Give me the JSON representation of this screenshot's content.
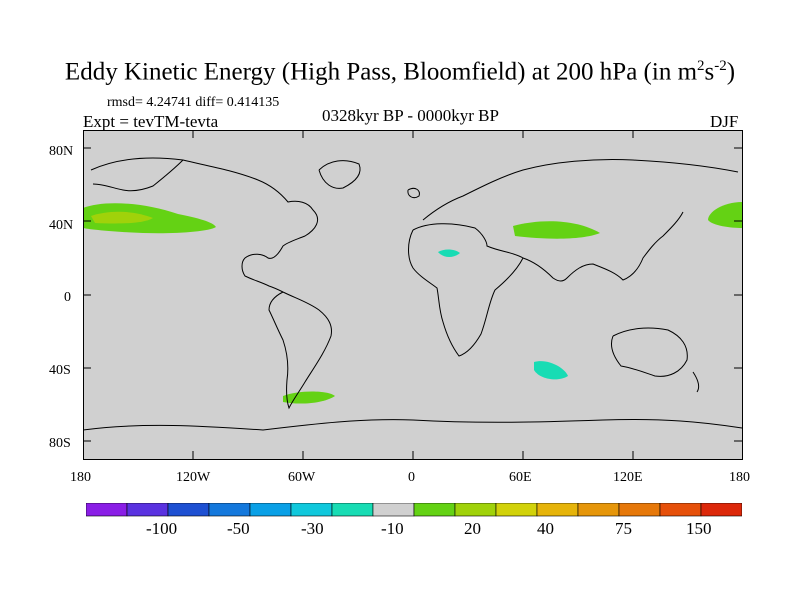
{
  "title": {
    "main": "Eddy Kinetic Energy (High Pass, Bloomfield) at 200 hPa (in m",
    "sup1": "2",
    "mid": "s",
    "sup2": "-2",
    "end": ")"
  },
  "stats": "rmsd= 4.24741  diff= 0.414135",
  "experiment": "Expt = tevTM-tevta",
  "period": "0328kyr BP - 0000kyr BP",
  "season": "DJF",
  "lat_labels": [
    "80N",
    "40N",
    "0",
    "40S",
    "80S"
  ],
  "lon_labels": [
    "180",
    "120W",
    "60W",
    "0",
    "60E",
    "120E",
    "180"
  ],
  "colorbar": {
    "labels": [
      "-100",
      "-50",
      "-30",
      "-10",
      "20",
      "40",
      "75",
      "150"
    ],
    "colors": [
      "#8a1ee6",
      "#5a32e0",
      "#1e50d2",
      "#1478dc",
      "#0aa0e6",
      "#10c8dc",
      "#18dcb4",
      "#d0d0d0",
      "#64d214",
      "#a0d20a",
      "#d2d20a",
      "#e6b40a",
      "#e6960a",
      "#e6780a",
      "#e6500a",
      "#dc280a"
    ]
  },
  "colors": {
    "land_ocean": "#d0d0d0",
    "coast": "#000000",
    "positive": "#64d214",
    "positive_high": "#a0d20a",
    "negative": "#18dcb4"
  }
}
